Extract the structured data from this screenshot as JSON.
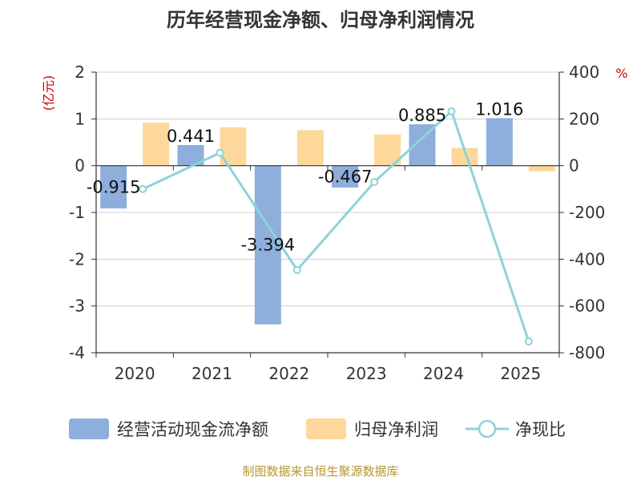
{
  "chart_data": {
    "type": "bar",
    "title": "历年经营现金净额、归母净利润情况",
    "categories": [
      "2020",
      "2021",
      "2022",
      "2023",
      "2024",
      "2025"
    ],
    "left_axis": {
      "unit": "(亿元)",
      "range": [
        -4,
        2
      ],
      "ticks": [
        "2",
        "1",
        "0",
        "-1",
        "-2",
        "-3",
        "-4"
      ]
    },
    "right_axis": {
      "unit": "%",
      "range": [
        -800,
        400
      ],
      "ticks": [
        "400",
        "200",
        "0",
        "-200",
        "-400",
        "-600",
        "-800"
      ]
    },
    "series": [
      {
        "name": "经营活动现金流净额",
        "kind": "bar",
        "axis": "left",
        "color": "#8eaedc",
        "values": [
          -0.915,
          0.441,
          -3.394,
          -0.467,
          0.885,
          1.016
        ],
        "labels": [
          "-0.915",
          "0.441",
          "-3.394",
          "-0.467",
          "0.885",
          "1.016"
        ]
      },
      {
        "name": "归母净利润",
        "kind": "bar",
        "axis": "left",
        "color": "#fdd89a",
        "values": [
          0.92,
          0.82,
          0.76,
          0.67,
          0.38,
          -0.12
        ]
      },
      {
        "name": "净现比",
        "kind": "line",
        "axis": "right",
        "color": "#8cd3d9",
        "values": [
          -100,
          55,
          -446,
          -70,
          233,
          -752
        ]
      }
    ],
    "legend_position": "bottom",
    "grid": true
  },
  "source_text": "制图数据来自恒生聚源数据库"
}
